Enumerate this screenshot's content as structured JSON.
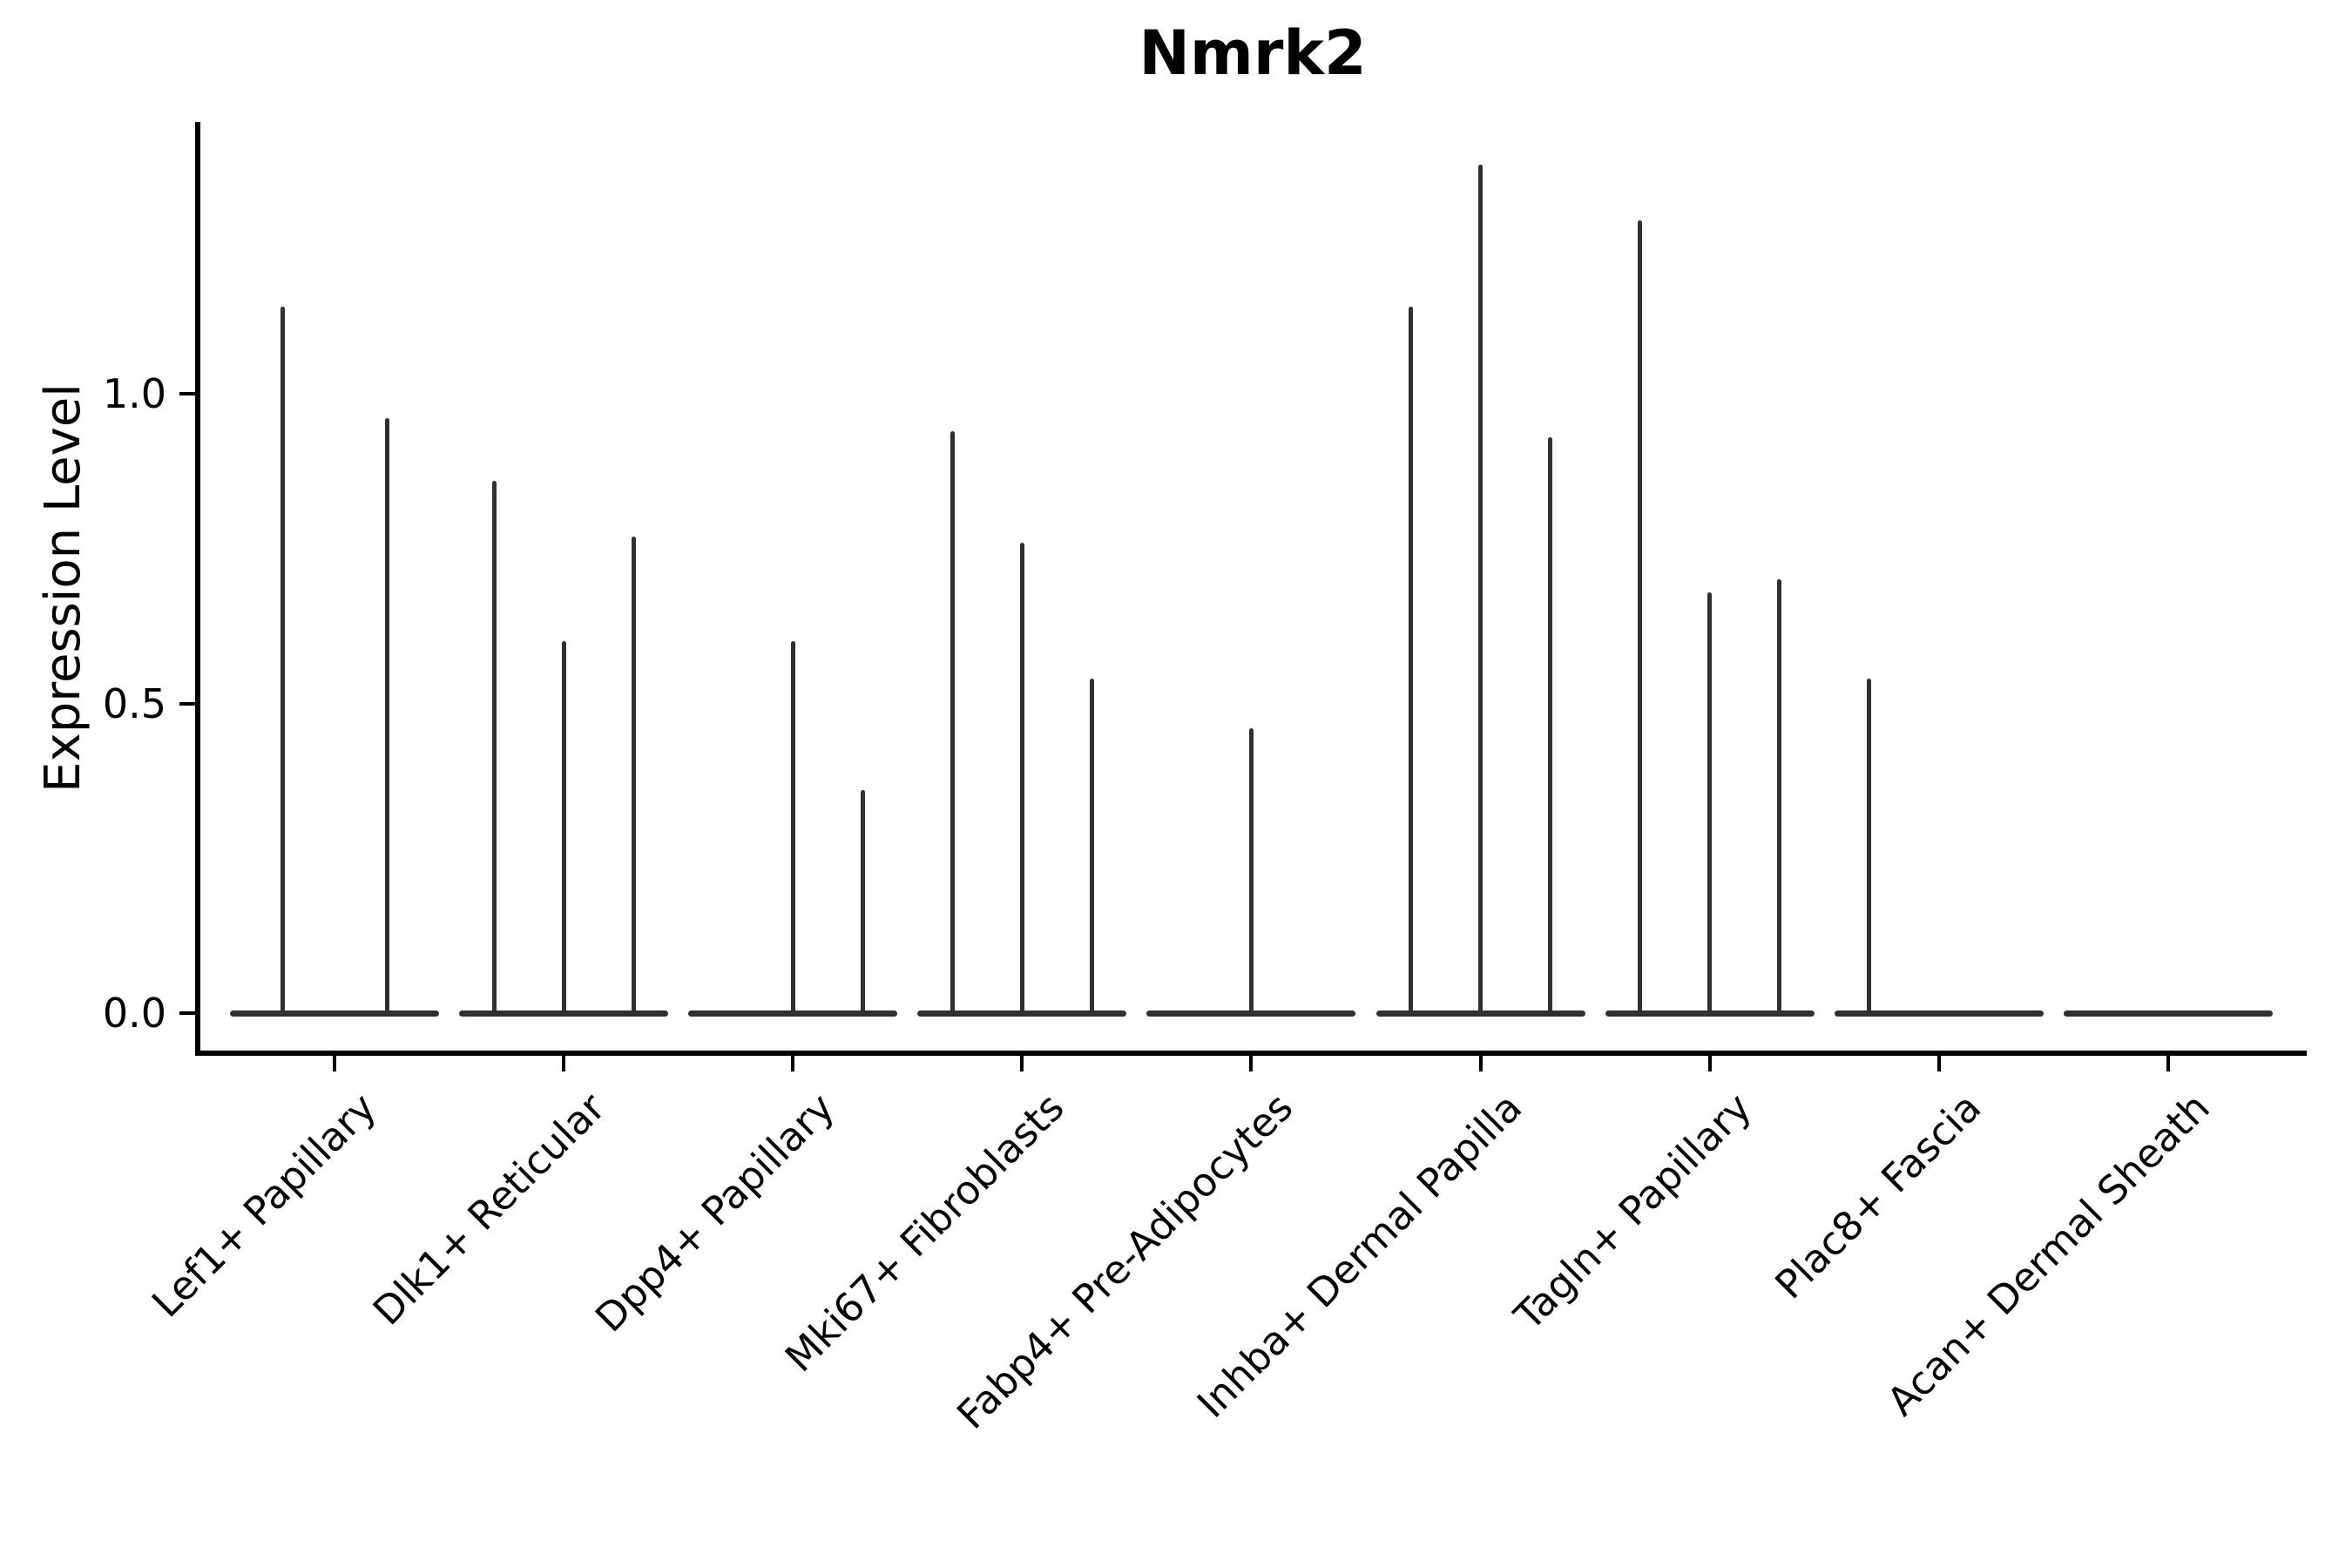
{
  "figure": {
    "title": "Nmrk2",
    "y_axis_label": "Expression Level"
  },
  "chart_data": {
    "type": "violin",
    "title": "Nmrk2",
    "ylabel": "Expression Level",
    "xlabel": "",
    "grid": false,
    "legend": "none",
    "background_color": "#ffffff",
    "violin_color": "#303030",
    "axis_color": "#000000",
    "text_color": "#000000",
    "x_tick_rotation": 45,
    "ylim": [
      -0.07,
      1.44
    ],
    "yticks": [
      {
        "label": "0.0",
        "value": 0.0
      },
      {
        "label": "0.5",
        "value": 0.5
      },
      {
        "label": "1.0",
        "value": 1.0
      }
    ],
    "categories": [
      {
        "label": "Lef1+ Papillary",
        "violin_peaks": [
          1.14,
          0.96
        ]
      },
      {
        "label": "Dlk1+ Reticular",
        "violin_peaks": [
          0.86,
          0.6,
          0.77
        ]
      },
      {
        "label": "Dpp4+ Papillary",
        "violin_peaks": [
          0,
          0.6,
          0.36
        ]
      },
      {
        "label": "Mki67+ Fibroblasts",
        "violin_peaks": [
          0.94,
          0.76,
          0.54
        ]
      },
      {
        "label": "Fabp4+ Pre-Adipocytes",
        "violin_peaks": [
          0,
          0.46,
          0
        ]
      },
      {
        "label": "Inhba+ Dermal Papilla",
        "violin_peaks": [
          1.14,
          1.37,
          0.93
        ]
      },
      {
        "label": "Tagln+ Papillary",
        "violin_peaks": [
          1.28,
          0.68,
          0.7
        ]
      },
      {
        "label": "Plac8+ Fascia",
        "violin_peaks": [
          0.54,
          0,
          0
        ]
      },
      {
        "label": "Acan+ Dermal Sheath",
        "violin_peaks": [
          0,
          0,
          0
        ]
      }
    ]
  }
}
